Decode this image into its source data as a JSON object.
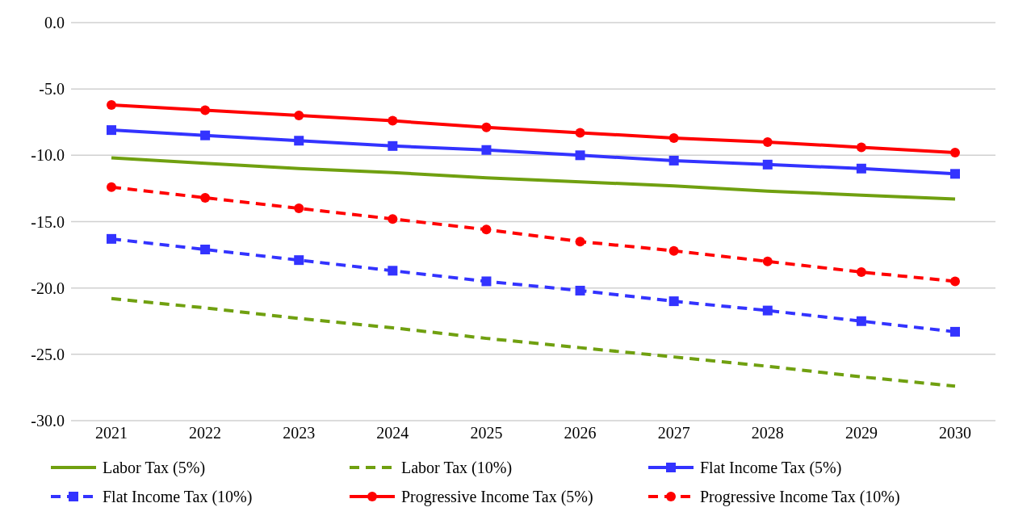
{
  "chart_data": {
    "type": "line",
    "categories": [
      "2021",
      "2022",
      "2023",
      "2024",
      "2025",
      "2026",
      "2027",
      "2028",
      "2029",
      "2030"
    ],
    "series": [
      {
        "name": "Labor Tax (5%)",
        "color": "#70a010",
        "marker": "none",
        "line_style": "solid",
        "values": [
          -10.2,
          -10.6,
          -11.0,
          -11.3,
          -11.7,
          -12.0,
          -12.3,
          -12.7,
          -13.0,
          -13.3
        ]
      },
      {
        "name": "Labor Tax (10%)",
        "color": "#70a010",
        "marker": "none",
        "line_style": "dashed",
        "values": [
          -20.8,
          -21.5,
          -22.3,
          -23.0,
          -23.8,
          -24.5,
          -25.2,
          -25.9,
          -26.7,
          -27.4
        ]
      },
      {
        "name": "Flat Income Tax (5%)",
        "color": "#3333ff",
        "marker": "square",
        "line_style": "solid",
        "values": [
          -8.1,
          -8.5,
          -8.9,
          -9.3,
          -9.6,
          -10.0,
          -10.4,
          -10.7,
          -11.0,
          -11.4
        ]
      },
      {
        "name": "Flat Income Tax (10%)",
        "color": "#3333ff",
        "marker": "square",
        "line_style": "dashed",
        "values": [
          -16.3,
          -17.1,
          -17.9,
          -18.7,
          -19.5,
          -20.2,
          -21.0,
          -21.7,
          -22.5,
          -23.3
        ]
      },
      {
        "name": "Progressive Income Tax (5%)",
        "color": "#ff0000",
        "marker": "circle",
        "line_style": "solid",
        "values": [
          -6.2,
          -6.6,
          -7.0,
          -7.4,
          -7.9,
          -8.3,
          -8.7,
          -9.0,
          -9.4,
          -9.8
        ]
      },
      {
        "name": "Progressive Income Tax (10%)",
        "color": "#ff0000",
        "marker": "circle",
        "line_style": "dashed",
        "values": [
          -12.4,
          -13.2,
          -14.0,
          -14.8,
          -15.6,
          -16.5,
          -17.2,
          -18.0,
          -18.8,
          -19.5
        ]
      }
    ],
    "ylim": [
      -30,
      0
    ],
    "yticks": [
      {
        "value": -30,
        "label": "-30.0"
      },
      {
        "value": -25,
        "label": "-25.0"
      },
      {
        "value": -20,
        "label": "-20.0"
      },
      {
        "value": -15,
        "label": "-15.0"
      },
      {
        "value": -10,
        "label": "-10.0"
      },
      {
        "value": -5,
        "label": "-5.0"
      },
      {
        "value": 0,
        "label": "0.0"
      }
    ],
    "grid": "y",
    "legend": "bottom"
  }
}
